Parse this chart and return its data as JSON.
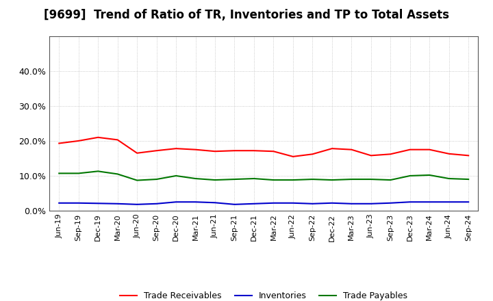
{
  "title": "[9699]  Trend of Ratio of TR, Inventories and TP to Total Assets",
  "x_labels": [
    "Jun-19",
    "Sep-19",
    "Dec-19",
    "Mar-20",
    "Jun-20",
    "Sep-20",
    "Dec-20",
    "Mar-21",
    "Jun-21",
    "Sep-21",
    "Dec-21",
    "Mar-22",
    "Jun-22",
    "Sep-22",
    "Dec-22",
    "Mar-23",
    "Jun-23",
    "Sep-23",
    "Dec-23",
    "Mar-24",
    "Jun-24",
    "Sep-24"
  ],
  "trade_receivables": [
    0.193,
    0.2,
    0.21,
    0.203,
    0.165,
    0.172,
    0.178,
    0.175,
    0.17,
    0.172,
    0.172,
    0.17,
    0.155,
    0.162,
    0.178,
    0.175,
    0.158,
    0.162,
    0.175,
    0.175,
    0.163,
    0.158
  ],
  "inventories": [
    0.022,
    0.022,
    0.021,
    0.02,
    0.018,
    0.02,
    0.025,
    0.025,
    0.023,
    0.018,
    0.02,
    0.022,
    0.022,
    0.02,
    0.022,
    0.02,
    0.02,
    0.022,
    0.025,
    0.025,
    0.025,
    0.025
  ],
  "trade_payables": [
    0.107,
    0.107,
    0.113,
    0.105,
    0.087,
    0.09,
    0.1,
    0.092,
    0.088,
    0.09,
    0.092,
    0.088,
    0.088,
    0.09,
    0.088,
    0.09,
    0.09,
    0.088,
    0.1,
    0.102,
    0.092,
    0.09
  ],
  "line_colors": {
    "trade_receivables": "#ff0000",
    "inventories": "#0000cc",
    "trade_payables": "#007700"
  },
  "legend_labels": [
    "Trade Receivables",
    "Inventories",
    "Trade Payables"
  ],
  "ylim": [
    0.0,
    0.5
  ],
  "yticks": [
    0.0,
    0.1,
    0.2,
    0.3,
    0.4
  ],
  "background_color": "#ffffff",
  "grid_color": "#aaaaaa",
  "title_fontsize": 12,
  "tick_fontsize": 9,
  "xtick_fontsize": 8
}
